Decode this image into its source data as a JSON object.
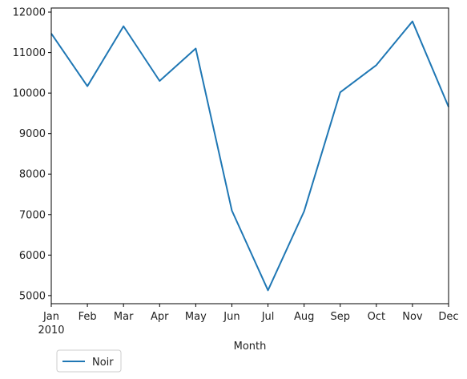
{
  "chart_data": {
    "type": "line",
    "title": "",
    "xlabel": "Month",
    "ylabel": "",
    "x": [
      "Jan",
      "Feb",
      "Mar",
      "Apr",
      "May",
      "Jun",
      "Jul",
      "Aug",
      "Sep",
      "Oct",
      "Nov",
      "Dec"
    ],
    "x_year_label": "2010",
    "series": [
      {
        "name": "Noir",
        "color": "#1f77b4",
        "values": [
          11470,
          10170,
          11650,
          10300,
          11100,
          7100,
          5130,
          7080,
          10020,
          10690,
          11770,
          9660
        ]
      }
    ],
    "ylim": [
      4800,
      12100
    ],
    "yticks": [
      5000,
      6000,
      7000,
      8000,
      9000,
      10000,
      11000,
      12000
    ],
    "grid": false,
    "legend": "bottom-left, outside below axes"
  }
}
